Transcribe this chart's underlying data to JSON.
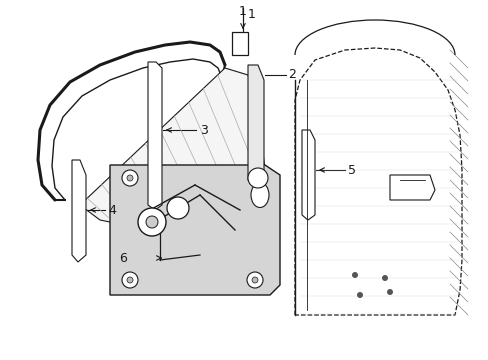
{
  "bg_color": "#ffffff",
  "line_color": "#1a1a1a",
  "label_color": "#000000",
  "fig_width": 4.89,
  "fig_height": 3.6,
  "dpi": 100,
  "xlim": [
    0,
    489
  ],
  "ylim": [
    0,
    360
  ]
}
